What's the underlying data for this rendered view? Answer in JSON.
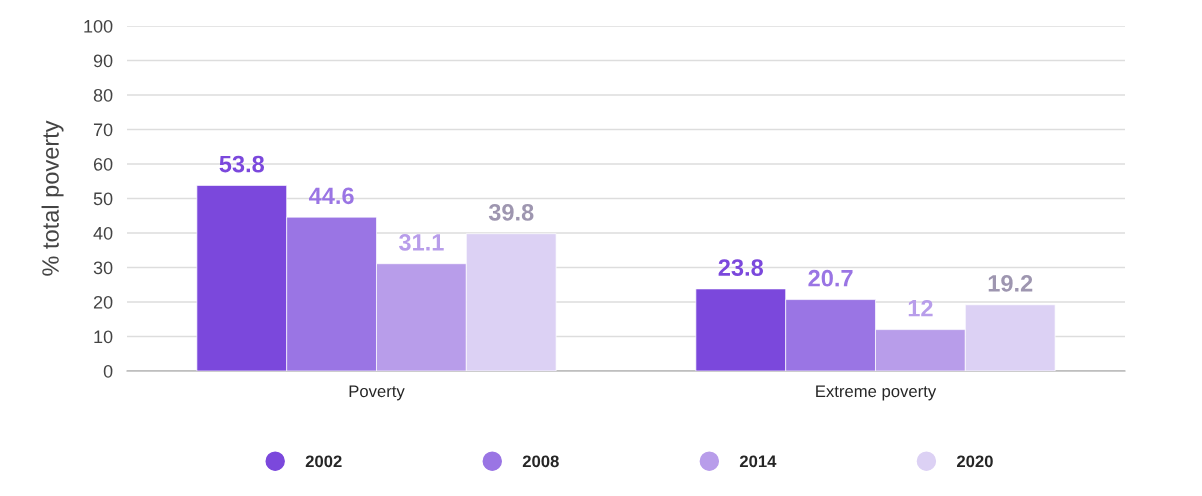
{
  "chart_data": {
    "type": "bar",
    "ylabel": "% total poverty",
    "categories": [
      "Poverty",
      "Extreme poverty"
    ],
    "series": [
      {
        "name": "2002",
        "color": "#7b48dc",
        "values": [
          53.8,
          23.8
        ]
      },
      {
        "name": "2008",
        "color": "#9a75e4",
        "values": [
          44.6,
          20.7
        ]
      },
      {
        "name": "2014",
        "color": "#b89dea",
        "values": [
          31.1,
          12
        ]
      },
      {
        "name": "2020",
        "color": "#dcd1f4",
        "values": [
          39.8,
          19.2
        ]
      }
    ],
    "ylim": [
      0,
      100
    ],
    "yticks": [
      0,
      10,
      20,
      30,
      40,
      50,
      60,
      70,
      80,
      90,
      100
    ],
    "grid": "y",
    "legend": "bottom",
    "data_labels": true
  }
}
